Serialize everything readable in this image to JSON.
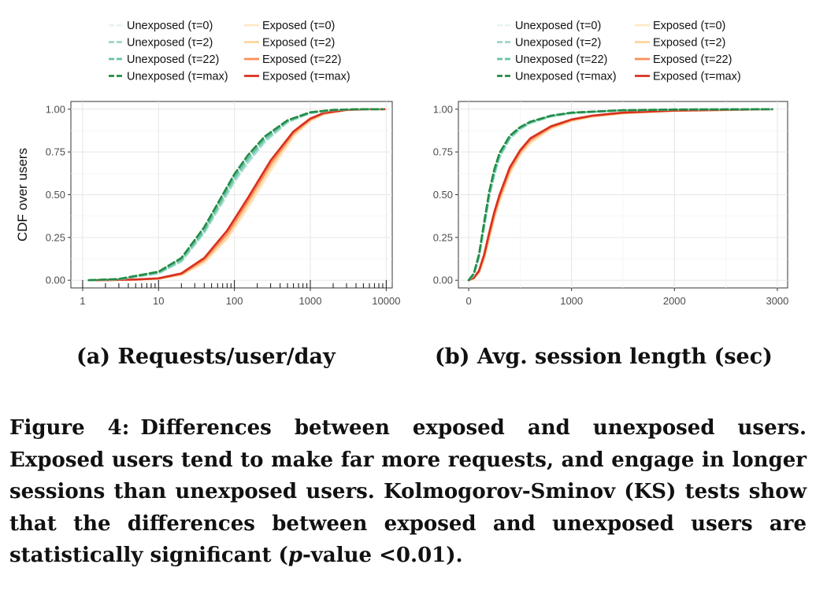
{
  "chart_data": [
    {
      "type": "line",
      "subcaption": "(a)  Requests/user/day",
      "ylabel": "CDF over users",
      "xscale": "log",
      "xlim": [
        0.7,
        12000
      ],
      "ylim": [
        0,
        1
      ],
      "xticks": [
        1,
        10,
        100,
        1000,
        10000
      ],
      "xticklabels": [
        "1",
        "10",
        "100",
        "1000",
        "10000"
      ],
      "yticks": [
        0,
        0.25,
        0.5,
        0.75,
        1.0
      ],
      "yticklabels": [
        "0.00",
        "0.25",
        "0.50",
        "0.75",
        "1.00"
      ],
      "grid": true,
      "series": [
        {
          "name": "Unexposed (τ=0)",
          "color": "#e5f5f0",
          "dash": "dashed",
          "x": [
            1.2,
            3,
            10,
            20,
            40,
            70,
            100,
            150,
            250,
            500,
            1000,
            2000,
            4000,
            9000
          ],
          "y": [
            0,
            0.005,
            0.04,
            0.11,
            0.27,
            0.45,
            0.57,
            0.68,
            0.8,
            0.92,
            0.975,
            0.995,
            1,
            1
          ]
        },
        {
          "name": "Unexposed (τ=2)",
          "color": "#99d8c9",
          "dash": "dashed",
          "x": [
            1.2,
            3,
            10,
            20,
            40,
            70,
            100,
            150,
            250,
            500,
            1000,
            2000,
            4000,
            9000
          ],
          "y": [
            0,
            0.005,
            0.04,
            0.11,
            0.28,
            0.46,
            0.58,
            0.69,
            0.81,
            0.925,
            0.977,
            0.995,
            1,
            1
          ]
        },
        {
          "name": "Unexposed (τ=22)",
          "color": "#66c2a4",
          "dash": "dashed",
          "x": [
            1.2,
            3,
            10,
            20,
            40,
            70,
            100,
            150,
            250,
            500,
            1000,
            2000,
            4000,
            9000
          ],
          "y": [
            0,
            0.006,
            0.045,
            0.12,
            0.29,
            0.48,
            0.6,
            0.71,
            0.825,
            0.93,
            0.98,
            0.996,
            1,
            1
          ]
        },
        {
          "name": "Unexposed (τ=max)",
          "color": "#238b45",
          "dash": "dashed",
          "x": [
            1.2,
            3,
            10,
            20,
            40,
            70,
            100,
            150,
            250,
            500,
            1000,
            2000,
            4000,
            9000
          ],
          "y": [
            0,
            0.007,
            0.05,
            0.13,
            0.31,
            0.5,
            0.62,
            0.73,
            0.84,
            0.935,
            0.982,
            0.996,
            1,
            1
          ]
        },
        {
          "name": "Exposed (τ=0)",
          "color": "#fee8c8",
          "dash": "solid",
          "x": [
            1.5,
            5,
            10,
            20,
            40,
            80,
            150,
            300,
            600,
            1000,
            1500,
            3000,
            6000,
            9500
          ],
          "y": [
            0,
            0.003,
            0.008,
            0.03,
            0.1,
            0.24,
            0.42,
            0.64,
            0.84,
            0.93,
            0.97,
            0.995,
            1,
            1
          ]
        },
        {
          "name": "Exposed (τ=2)",
          "color": "#fdd49e",
          "dash": "solid",
          "x": [
            1.5,
            5,
            10,
            20,
            40,
            80,
            150,
            300,
            600,
            1000,
            1500,
            3000,
            6000,
            9500
          ],
          "y": [
            0,
            0.003,
            0.009,
            0.033,
            0.11,
            0.25,
            0.44,
            0.66,
            0.85,
            0.935,
            0.972,
            0.995,
            1,
            1
          ]
        },
        {
          "name": "Exposed (τ=22)",
          "color": "#fc8d59",
          "dash": "solid",
          "x": [
            1.5,
            5,
            10,
            20,
            40,
            80,
            150,
            300,
            600,
            1000,
            1500,
            3000,
            6000,
            9500
          ],
          "y": [
            0,
            0.004,
            0.01,
            0.036,
            0.12,
            0.27,
            0.46,
            0.68,
            0.86,
            0.94,
            0.975,
            0.996,
            1,
            1
          ]
        },
        {
          "name": "Exposed (τ=max)",
          "color": "#d7301f",
          "dash": "solid",
          "x": [
            1.5,
            5,
            10,
            20,
            40,
            80,
            150,
            300,
            600,
            1000,
            1500,
            3000,
            6000,
            9500
          ],
          "y": [
            0,
            0.004,
            0.011,
            0.04,
            0.13,
            0.29,
            0.48,
            0.7,
            0.87,
            0.945,
            0.978,
            0.996,
            1,
            1
          ]
        }
      ]
    },
    {
      "type": "line",
      "subcaption": "(b)  Avg. session length (sec)",
      "ylabel": "",
      "xscale": "linear",
      "xlim": [
        -100,
        3100
      ],
      "ylim": [
        0,
        1
      ],
      "xticks": [
        0,
        1000,
        2000,
        3000
      ],
      "xticklabels": [
        "0",
        "1000",
        "2000",
        "3000"
      ],
      "yticks": [
        0,
        0.25,
        0.5,
        0.75,
        1.0
      ],
      "yticklabels": [
        "0.00",
        "0.25",
        "0.50",
        "0.75",
        "1.00"
      ],
      "grid": true,
      "series": [
        {
          "name": "Unexposed (τ=0)",
          "color": "#e5f5f0",
          "dash": "dashed",
          "x": [
            0,
            50,
            100,
            150,
            200,
            250,
            300,
            400,
            500,
            600,
            800,
            1000,
            1500,
            2000,
            2950
          ],
          "y": [
            0,
            0.03,
            0.13,
            0.3,
            0.48,
            0.61,
            0.71,
            0.82,
            0.88,
            0.915,
            0.955,
            0.975,
            0.993,
            0.998,
            1
          ]
        },
        {
          "name": "Unexposed (τ=2)",
          "color": "#99d8c9",
          "dash": "dashed",
          "x": [
            0,
            50,
            100,
            150,
            200,
            250,
            300,
            400,
            500,
            600,
            800,
            1000,
            1500,
            2000,
            2950
          ],
          "y": [
            0,
            0.03,
            0.135,
            0.31,
            0.49,
            0.62,
            0.72,
            0.83,
            0.885,
            0.92,
            0.958,
            0.977,
            0.993,
            0.998,
            1
          ]
        },
        {
          "name": "Unexposed (τ=22)",
          "color": "#66c2a4",
          "dash": "dashed",
          "x": [
            0,
            50,
            100,
            150,
            200,
            250,
            300,
            400,
            500,
            600,
            800,
            1000,
            1500,
            2000,
            2950
          ],
          "y": [
            0,
            0.035,
            0.14,
            0.32,
            0.5,
            0.63,
            0.73,
            0.835,
            0.89,
            0.923,
            0.96,
            0.978,
            0.994,
            0.998,
            1
          ]
        },
        {
          "name": "Unexposed (τ=max)",
          "color": "#238b45",
          "dash": "dashed",
          "x": [
            0,
            50,
            100,
            150,
            200,
            250,
            300,
            400,
            500,
            600,
            800,
            1000,
            1500,
            2000,
            2950
          ],
          "y": [
            0,
            0.04,
            0.15,
            0.34,
            0.52,
            0.65,
            0.745,
            0.845,
            0.895,
            0.927,
            0.962,
            0.98,
            0.994,
            0.998,
            1
          ]
        },
        {
          "name": "Exposed (τ=0)",
          "color": "#fee8c8",
          "dash": "solid",
          "x": [
            0,
            50,
            100,
            150,
            200,
            250,
            300,
            400,
            500,
            600,
            800,
            1000,
            1200,
            1500,
            2000,
            2950
          ],
          "y": [
            0,
            0.01,
            0.04,
            0.12,
            0.24,
            0.36,
            0.46,
            0.62,
            0.73,
            0.8,
            0.885,
            0.93,
            0.955,
            0.975,
            0.99,
            1
          ]
        },
        {
          "name": "Exposed (τ=2)",
          "color": "#fdd49e",
          "dash": "solid",
          "x": [
            0,
            50,
            100,
            150,
            200,
            250,
            300,
            400,
            500,
            600,
            800,
            1000,
            1200,
            1500,
            2000,
            2950
          ],
          "y": [
            0,
            0.012,
            0.045,
            0.13,
            0.25,
            0.37,
            0.47,
            0.63,
            0.74,
            0.81,
            0.89,
            0.933,
            0.957,
            0.976,
            0.99,
            1
          ]
        },
        {
          "name": "Exposed (τ=22)",
          "color": "#fc8d59",
          "dash": "solid",
          "x": [
            0,
            50,
            100,
            150,
            200,
            250,
            300,
            400,
            500,
            600,
            800,
            1000,
            1200,
            1500,
            2000,
            2950
          ],
          "y": [
            0,
            0.013,
            0.05,
            0.14,
            0.265,
            0.385,
            0.485,
            0.645,
            0.75,
            0.82,
            0.895,
            0.937,
            0.96,
            0.978,
            0.991,
            1
          ]
        },
        {
          "name": "Exposed (τ=max)",
          "color": "#d7301f",
          "dash": "solid",
          "x": [
            0,
            50,
            100,
            150,
            200,
            250,
            300,
            400,
            500,
            600,
            800,
            1000,
            1200,
            1500,
            2000,
            2950
          ],
          "y": [
            0,
            0.015,
            0.055,
            0.15,
            0.28,
            0.4,
            0.5,
            0.66,
            0.76,
            0.83,
            0.9,
            0.94,
            0.962,
            0.98,
            0.992,
            1
          ]
        }
      ]
    }
  ],
  "caption": {
    "label": "Figure 4:",
    "text_before_p": "Differences between exposed and unexposed users. Exposed users tend to make far more requests, and engage in longer sessions than unexposed users. Kolmogorov-Sminov (KS) tests show that the differences between exposed and unexposed users are statistically significant (",
    "p": "p",
    "text_after_p": "-value <0.01)."
  }
}
